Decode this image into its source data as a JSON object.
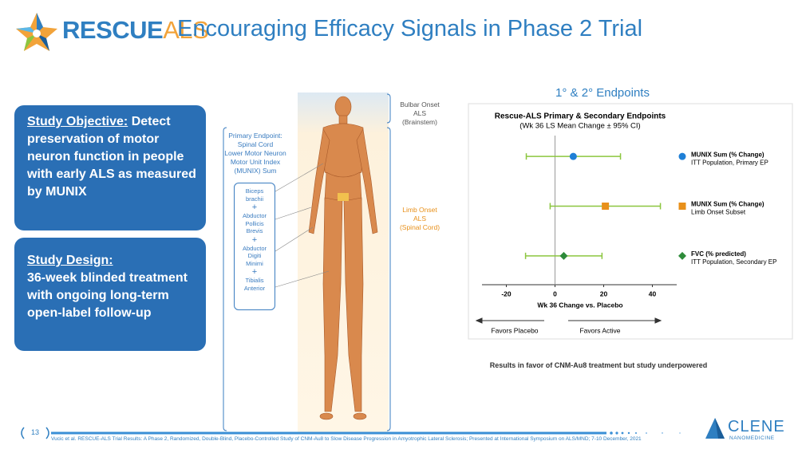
{
  "header": {
    "brand_main": "RESCUE",
    "brand_accent": "ALS",
    "title": "Encouraging Efficacy Signals in Phase 2 Trial"
  },
  "objective": {
    "heading": "Study Objective:",
    "text": "Detect preservation of motor neuron function in people with early ALS as measured by MUNIX"
  },
  "design": {
    "heading": "Study Design:",
    "text": "36-week blinded treatment with ongoing long-term open-label follow-up"
  },
  "figure": {
    "primary_endpoint": [
      "Primary Endpoint:",
      "Spinal Cord",
      "Lower Motor Neuron",
      "Motor Unit Index",
      "(MUNIX) Sum"
    ],
    "muscles": [
      [
        "Biceps",
        "brachii"
      ],
      [
        "Abductor",
        "Pollicis",
        "Brevis"
      ],
      [
        "Abductor",
        "Digiti",
        "Minimi"
      ],
      [
        "Tibialis",
        "Anterior"
      ]
    ],
    "plus": "+",
    "bulbar": [
      "Bulbar Onset",
      "ALS",
      "(Brainstem)"
    ],
    "limb": [
      "Limb Onset",
      "ALS",
      "(Spinal Cord)"
    ]
  },
  "endpoints_heading": "1° & 2° Endpoints",
  "chart_data": {
    "type": "forest",
    "title": "Rescue-ALS Primary & Secondary Endpoints",
    "subtitle": "(Wk 36 LS Mean Change ± 95% CI)",
    "x_label": "Wk 36 Change vs. Placebo",
    "xlim": [
      -30,
      50
    ],
    "xticks": [
      -20,
      0,
      20,
      40
    ],
    "left_annotation": "Favors Placebo",
    "right_annotation": "Favors Active",
    "ci_color": "#8cc63f",
    "series": [
      {
        "name": "MUNIX Sum (% Change)",
        "description": "ITT Population, Primary EP",
        "color": "#1f7fd6",
        "marker": "circle",
        "value": 7.5,
        "lower": -11.8,
        "upper": 26.9
      },
      {
        "name": "MUNIX Sum (% Change)",
        "description": "Limb Onset Subset",
        "color": "#e8901a",
        "marker": "square",
        "value": 20.7,
        "lower": -2,
        "upper": 43.3
      },
      {
        "name": "FVC (% predicted)",
        "description": "ITT Population, Secondary EP",
        "color": "#2e8b3a",
        "marker": "diamond",
        "value": 3.6,
        "lower": -12.1,
        "upper": 19.3
      }
    ]
  },
  "caption": "Results in favor of CNM-Au8 treatment but study underpowered",
  "footer": {
    "page": "13",
    "citation": "Vucic et al. RESCUE-ALS Trial Results: A Phase 2, Randomized, Double-Blind, Placebo-Controlled Study of CNM-Au8 to Slow Disease Progression in Amyotrophic Lateral Sclerosis; Presented at International Symposium on ALS/MND; 7-10 December, 2021",
    "logo": "CLENE",
    "logo_sub": "NANOMEDICINE"
  }
}
